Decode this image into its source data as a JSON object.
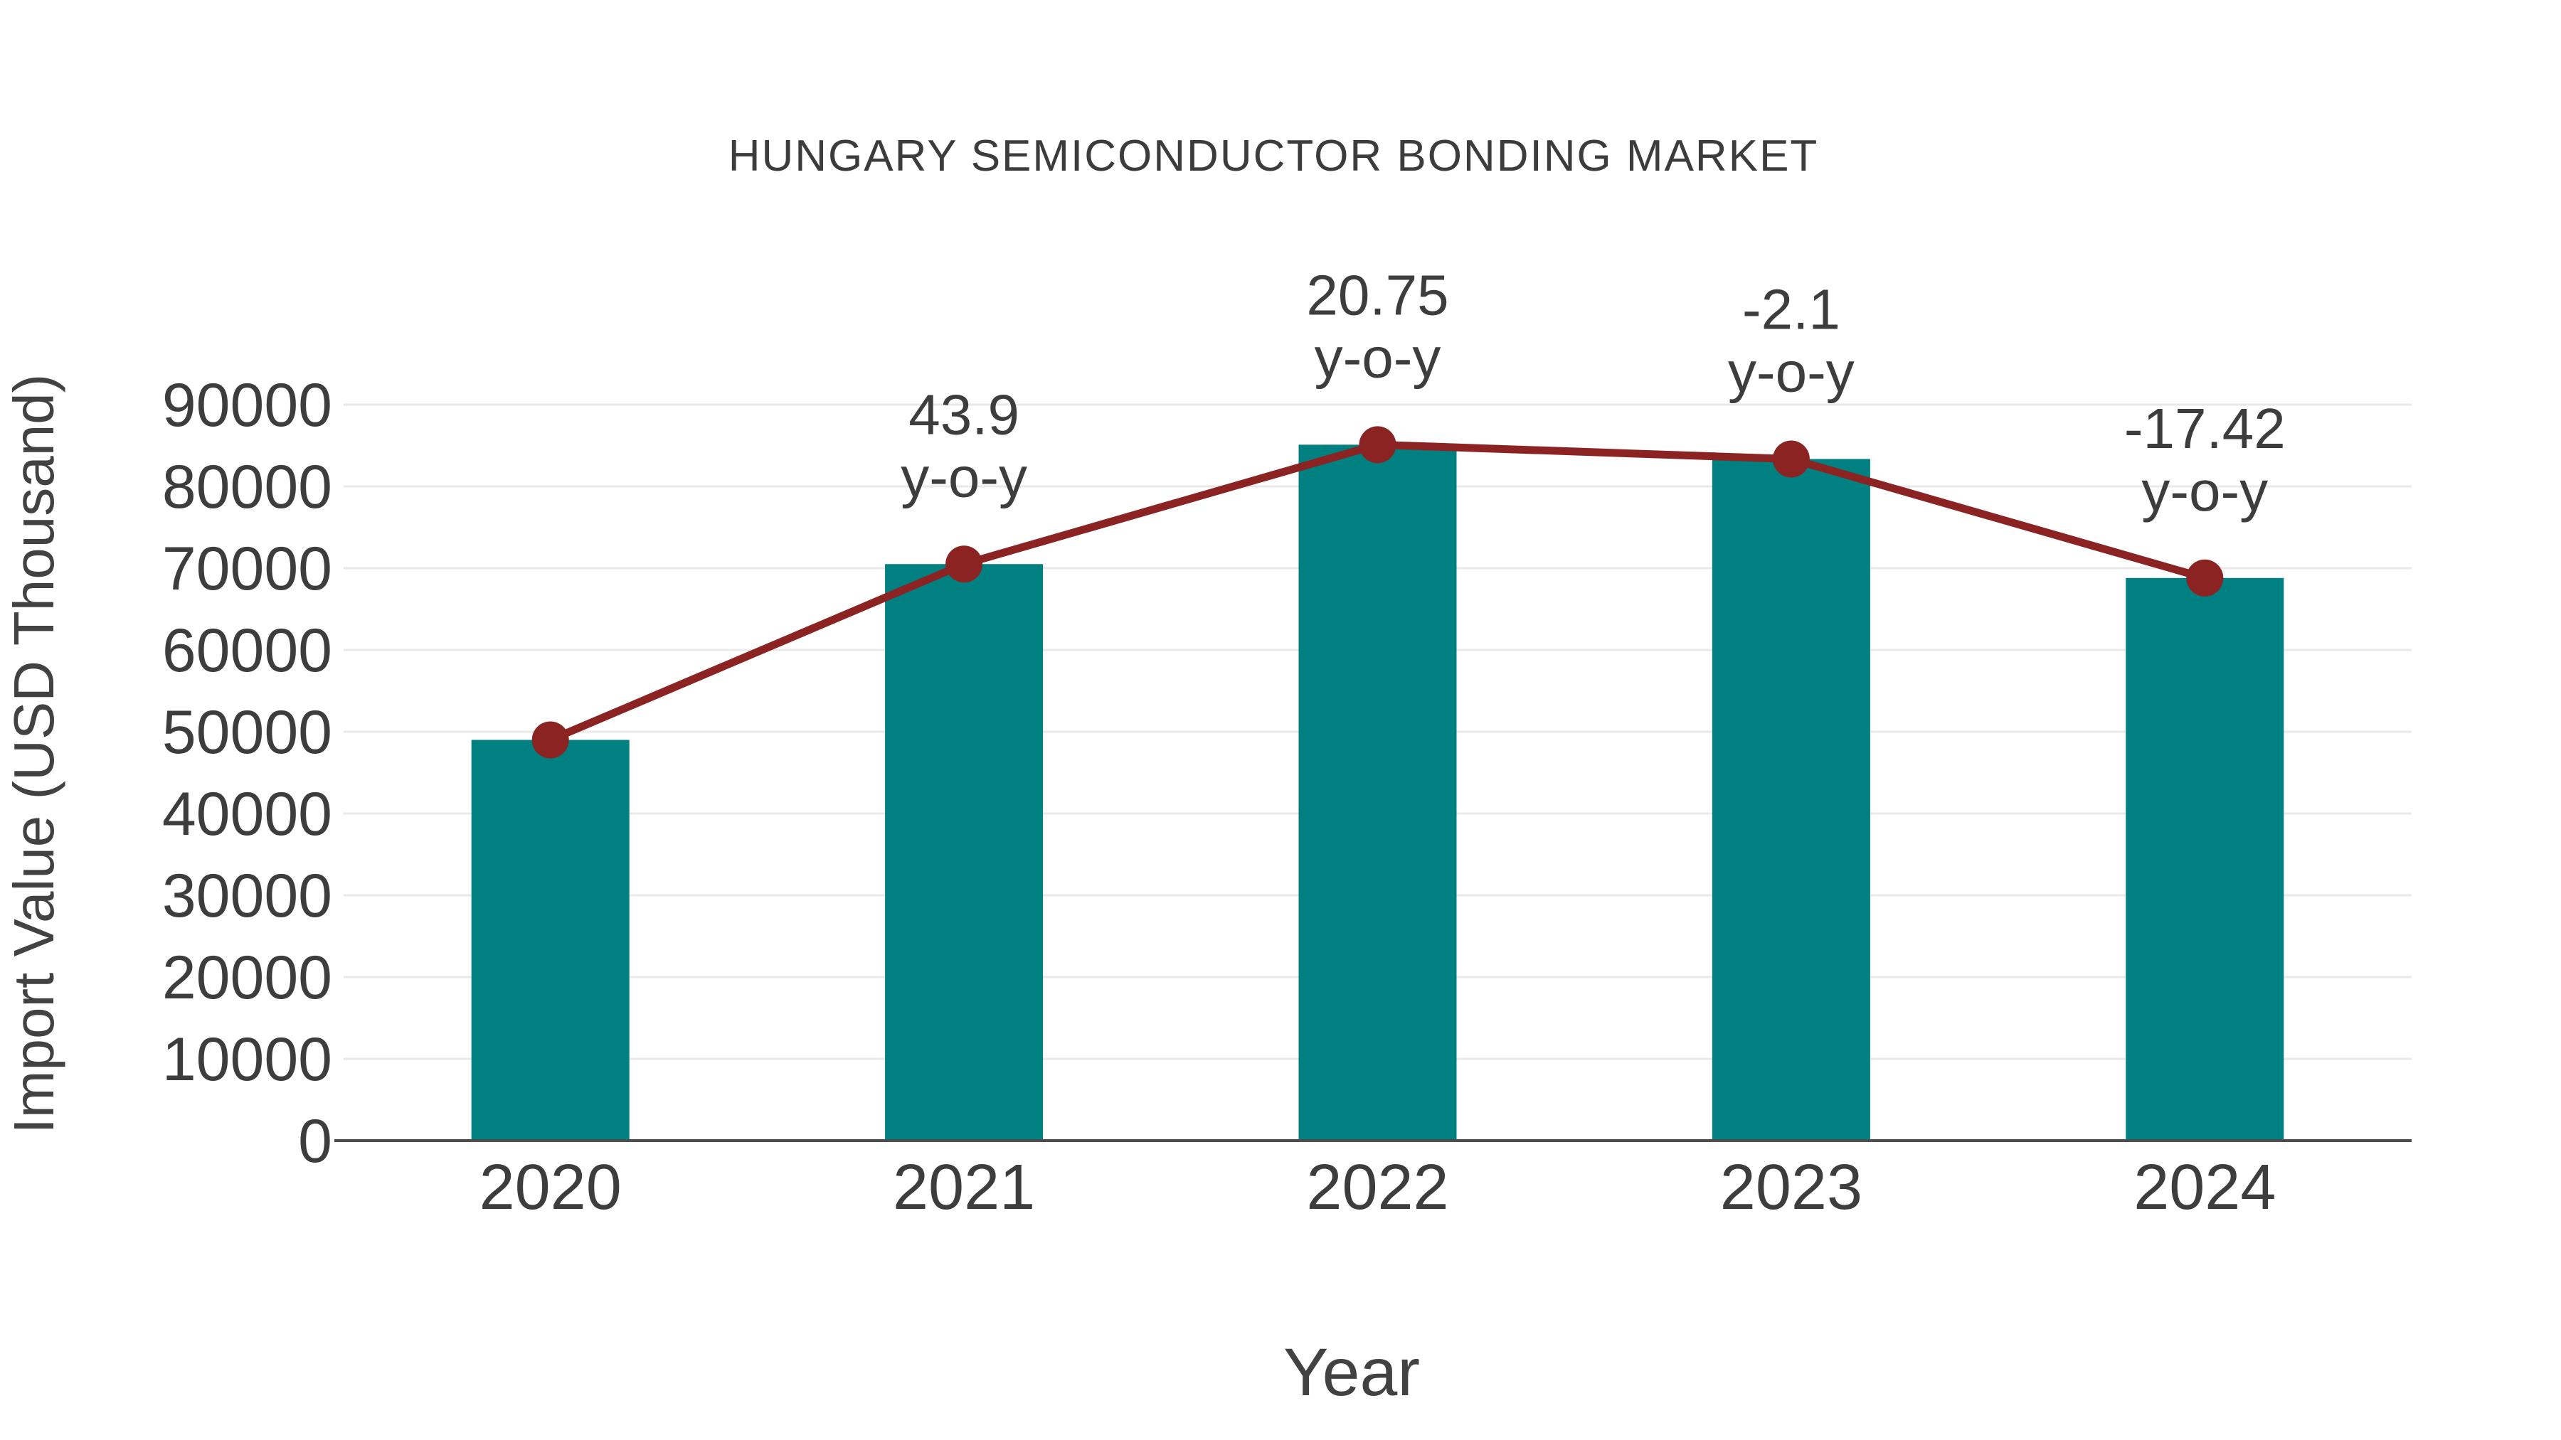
{
  "page": {
    "background": "#FFFFFF"
  },
  "chart_data": {
    "type": "bar+line",
    "title": "HUNGARY SEMICONDUCTOR BONDING MARKET",
    "xlabel": "Year",
    "ylabel": "Import Value (USD Thousand)",
    "categories": [
      "2020",
      "2021",
      "2022",
      "2023",
      "2024"
    ],
    "series": [
      {
        "name": "Import Value (USD Thousand)",
        "type": "bar",
        "values": [
          49000,
          70500,
          85100,
          83350,
          68800
        ],
        "color": "#008080"
      },
      {
        "name": "y-o-y growth (%)",
        "type": "line",
        "values": [
          null,
          43.9,
          20.75,
          -2.1,
          -17.42
        ],
        "color": "#8B2323",
        "plotted_at": "bar_tops",
        "marker": "circle"
      }
    ],
    "annotations": [
      {
        "category": "2021",
        "line1": "43.9",
        "line2": "y-o-y"
      },
      {
        "category": "2022",
        "line1": "20.75",
        "line2": "y-o-y"
      },
      {
        "category": "2023",
        "line1": "-2.1",
        "line2": "y-o-y"
      },
      {
        "category": "2024",
        "line1": "-17.42",
        "line2": "y-o-y"
      }
    ],
    "ylim": [
      0,
      90000
    ],
    "yticks": [
      0,
      10000,
      20000,
      30000,
      40000,
      50000,
      60000,
      70000,
      80000,
      90000
    ],
    "grid": true,
    "legend": "none",
    "colors": {
      "text": "#3D3D3D",
      "axis": "#4D4D4D",
      "grid": "#E9E9E9",
      "background": "#FFFFFF"
    }
  }
}
